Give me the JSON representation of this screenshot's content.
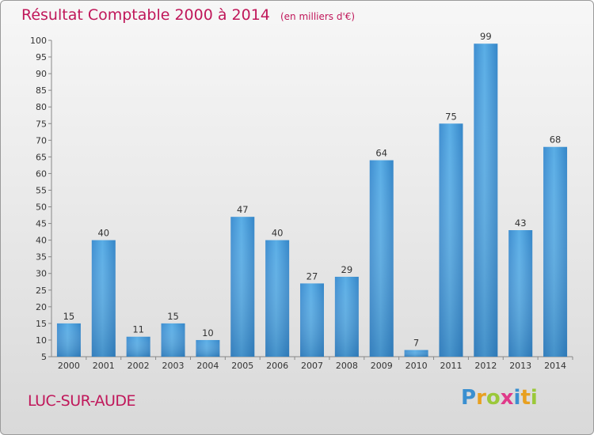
{
  "chart_data": {
    "type": "bar",
    "title": "Résultat Comptable 2000 à 2014",
    "subtitle": "(en milliers d'€)",
    "categories": [
      "2000",
      "2001",
      "2002",
      "2003",
      "2004",
      "2005",
      "2006",
      "2007",
      "2008",
      "2009",
      "2010",
      "2011",
      "2012",
      "2013",
      "2014"
    ],
    "values": [
      15,
      40,
      11,
      15,
      10,
      47,
      40,
      27,
      29,
      64,
      7,
      75,
      99,
      43,
      68
    ],
    "ylim": [
      5,
      100
    ],
    "yticks": [
      5,
      10,
      15,
      20,
      25,
      30,
      35,
      40,
      45,
      50,
      55,
      60,
      65,
      70,
      75,
      80,
      85,
      90,
      95,
      100
    ],
    "xlabel": "",
    "ylabel": "",
    "grid": false,
    "bar_color": "#4a9fdc"
  },
  "footer": {
    "commune": "LUC-SUR-AUDE",
    "logo_letters": [
      "P",
      "r",
      "o",
      "x",
      "i",
      "t",
      "i"
    ],
    "logo_colors": [
      "#3a8fd0",
      "#e8a020",
      "#9bc83a",
      "#e03a8a",
      "#3a8fd0",
      "#e8a020",
      "#9bc83a"
    ]
  }
}
